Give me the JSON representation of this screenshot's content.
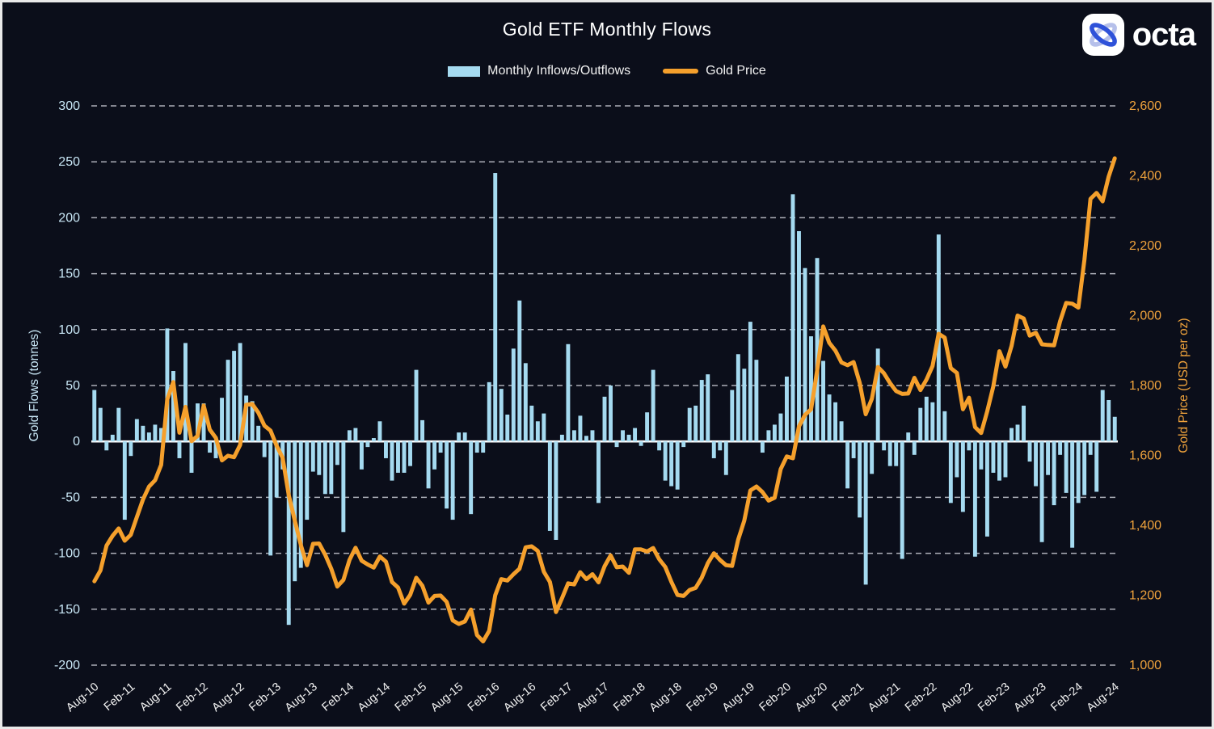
{
  "header": {
    "title": "Gold ETF Monthly Flows"
  },
  "legend": {
    "flows_label": "Monthly Inflows/Outflows",
    "price_label": "Gold Price"
  },
  "logo": {
    "text": "octa"
  },
  "chart_data": {
    "type": "bar",
    "title": "Gold ETF Monthly Flows",
    "background": "#0b0e1a",
    "grid": {
      "color": "#c9ccd4",
      "zero_line_color": "#ffffff",
      "dashed": true
    },
    "x_tick_every": 6,
    "x_tick_color": "#f2f2f2",
    "left_axis": {
      "title": "Gold Flows (tonnes)",
      "min": -200,
      "max": 300,
      "ticks": [
        300,
        250,
        200,
        150,
        100,
        50,
        0,
        -50,
        -100,
        -150,
        -200
      ],
      "color": "#c8e6f5"
    },
    "right_axis": {
      "title": "Gold Price (USD per oz)",
      "min": 1000,
      "max": 2600,
      "ticks": [
        2600,
        2400,
        2200,
        2000,
        1800,
        1600,
        1400,
        1200,
        1000
      ],
      "tick_labels": [
        "2,600",
        "2,400",
        "2,200",
        "2,000",
        "1,800",
        "1,600",
        "1,400",
        "1,200",
        "1,000"
      ],
      "color": "#f0a33c"
    },
    "categories": [
      "Aug-10",
      "Sep-10",
      "Oct-10",
      "Nov-10",
      "Dec-10",
      "Jan-11",
      "Feb-11",
      "Mar-11",
      "Apr-11",
      "May-11",
      "Jun-11",
      "Jul-11",
      "Aug-11",
      "Sep-11",
      "Oct-11",
      "Nov-11",
      "Dec-11",
      "Jan-12",
      "Feb-12",
      "Mar-12",
      "Apr-12",
      "May-12",
      "Jun-12",
      "Jul-12",
      "Aug-12",
      "Sep-12",
      "Oct-12",
      "Nov-12",
      "Dec-12",
      "Jan-13",
      "Feb-13",
      "Mar-13",
      "Apr-13",
      "May-13",
      "Jun-13",
      "Jul-13",
      "Aug-13",
      "Sep-13",
      "Oct-13",
      "Nov-13",
      "Dec-13",
      "Jan-14",
      "Feb-14",
      "Mar-14",
      "Apr-14",
      "May-14",
      "Jun-14",
      "Jul-14",
      "Aug-14",
      "Sep-14",
      "Oct-14",
      "Nov-14",
      "Dec-14",
      "Jan-15",
      "Feb-15",
      "Mar-15",
      "Apr-15",
      "May-15",
      "Jun-15",
      "Jul-15",
      "Aug-15",
      "Sep-15",
      "Oct-15",
      "Nov-15",
      "Dec-15",
      "Jan-16",
      "Feb-16",
      "Mar-16",
      "Apr-16",
      "May-16",
      "Jun-16",
      "Jul-16",
      "Aug-16",
      "Sep-16",
      "Oct-16",
      "Nov-16",
      "Dec-16",
      "Jan-17",
      "Feb-17",
      "Mar-17",
      "Apr-17",
      "May-17",
      "Jun-17",
      "Jul-17",
      "Aug-17",
      "Sep-17",
      "Oct-17",
      "Nov-17",
      "Dec-17",
      "Jan-18",
      "Feb-18",
      "Mar-18",
      "Apr-18",
      "May-18",
      "Jun-18",
      "Jul-18",
      "Aug-18",
      "Sep-18",
      "Oct-18",
      "Nov-18",
      "Dec-18",
      "Jan-19",
      "Feb-19",
      "Mar-19",
      "Apr-19",
      "May-19",
      "Jun-19",
      "Jul-19",
      "Aug-19",
      "Sep-19",
      "Oct-19",
      "Nov-19",
      "Dec-19",
      "Jan-20",
      "Feb-20",
      "Mar-20",
      "Apr-20",
      "May-20",
      "Jun-20",
      "Jul-20",
      "Aug-20",
      "Sep-20",
      "Oct-20",
      "Nov-20",
      "Dec-20",
      "Jan-21",
      "Feb-21",
      "Mar-21",
      "Apr-21",
      "May-21",
      "Jun-21",
      "Jul-21",
      "Aug-21",
      "Sep-21",
      "Oct-21",
      "Nov-21",
      "Dec-21",
      "Jan-22",
      "Feb-22",
      "Mar-22",
      "Apr-22",
      "May-22",
      "Jun-22",
      "Jul-22",
      "Aug-22",
      "Sep-22",
      "Oct-22",
      "Nov-22",
      "Dec-22",
      "Jan-23",
      "Feb-23",
      "Mar-23",
      "Apr-23",
      "May-23",
      "Jun-23",
      "Jul-23",
      "Aug-23",
      "Sep-23",
      "Oct-23",
      "Nov-23",
      "Dec-23",
      "Jan-24",
      "Feb-24",
      "Mar-24",
      "Apr-24",
      "May-24",
      "Jun-24",
      "Jul-24",
      "Aug-24"
    ],
    "series": [
      {
        "name": "Monthly Inflows/Outflows",
        "type": "bar",
        "axis": "left",
        "color": "#a5daf0",
        "values": [
          46,
          30,
          -8,
          6,
          30,
          -70,
          -13,
          20,
          14,
          8,
          15,
          12,
          101,
          63,
          -15,
          88,
          -28,
          34,
          34,
          -10,
          -15,
          39,
          73,
          81,
          88,
          41,
          36,
          14,
          -14,
          -102,
          -50,
          -25,
          -164,
          -125,
          -113,
          -70,
          -27,
          -30,
          -47,
          -47,
          -21,
          -81,
          10,
          12,
          -25,
          -5,
          3,
          18,
          -15,
          -35,
          -28,
          -28,
          -22,
          64,
          19,
          -42,
          -25,
          -10,
          -60,
          -70,
          8,
          8,
          -65,
          -10,
          -10,
          53,
          240,
          47,
          24,
          83,
          126,
          70,
          32,
          18,
          25,
          -80,
          -88,
          6,
          87,
          10,
          23,
          5,
          10,
          -55,
          40,
          50,
          -5,
          10,
          6,
          12,
          -4,
          26,
          64,
          -8,
          -35,
          -40,
          -43,
          -5,
          30,
          32,
          55,
          60,
          -15,
          -8,
          -30,
          46,
          78,
          65,
          107,
          73,
          -10,
          10,
          15,
          25,
          58,
          221,
          188,
          155,
          94,
          164,
          72,
          42,
          35,
          18,
          -42,
          -15,
          -68,
          -128,
          -29,
          83,
          -8,
          -22,
          -22,
          -105,
          8,
          -12,
          30,
          40,
          35,
          185,
          27,
          -55,
          -32,
          -63,
          -8,
          -103,
          -25,
          -85,
          -28,
          -35,
          -32,
          12,
          15,
          32,
          -18,
          -40,
          -90,
          -30,
          -57,
          -12,
          -46,
          -95,
          -55,
          -48,
          -12,
          -45,
          46,
          37,
          22
        ]
      },
      {
        "name": "Gold Price",
        "type": "line",
        "axis": "right",
        "color": "#f5a02c",
        "values": [
          1240,
          1271,
          1342,
          1370,
          1391,
          1356,
          1373,
          1424,
          1474,
          1511,
          1529,
          1573,
          1760,
          1810,
          1665,
          1739,
          1641,
          1656,
          1743,
          1674,
          1650,
          1586,
          1599,
          1595,
          1630,
          1745,
          1747,
          1722,
          1685,
          1671,
          1628,
          1593,
          1487,
          1414,
          1343,
          1286,
          1347,
          1348,
          1316,
          1276,
          1225,
          1244,
          1301,
          1336,
          1299,
          1288,
          1279,
          1311,
          1296,
          1238,
          1222,
          1176,
          1201,
          1250,
          1227,
          1179,
          1198,
          1199,
          1181,
          1128,
          1118,
          1125,
          1159,
          1086,
          1068,
          1098,
          1200,
          1246,
          1242,
          1260,
          1276,
          1337,
          1340,
          1327,
          1267,
          1238,
          1152,
          1192,
          1234,
          1231,
          1266,
          1246,
          1260,
          1237,
          1283,
          1314,
          1280,
          1282,
          1264,
          1331,
          1331,
          1325,
          1335,
          1303,
          1281,
          1238,
          1201,
          1198,
          1215,
          1221,
          1250,
          1292,
          1320,
          1301,
          1286,
          1284,
          1359,
          1413,
          1500,
          1511,
          1495,
          1471,
          1479,
          1561,
          1597,
          1592,
          1683,
          1716,
          1732,
          1843,
          1969,
          1922,
          1900,
          1866,
          1858,
          1867,
          1808,
          1718,
          1762,
          1853,
          1835,
          1807,
          1784,
          1776,
          1777,
          1822,
          1787,
          1817,
          1856,
          1948,
          1937,
          1850,
          1836,
          1732,
          1765,
          1681,
          1664,
          1726,
          1797,
          1898,
          1854,
          1913,
          2000,
          1992,
          1943,
          1951,
          1918,
          1916,
          1915,
          1984,
          2036,
          2034,
          2023,
          2160,
          2334,
          2351,
          2327,
          2398,
          2450
        ]
      }
    ]
  }
}
